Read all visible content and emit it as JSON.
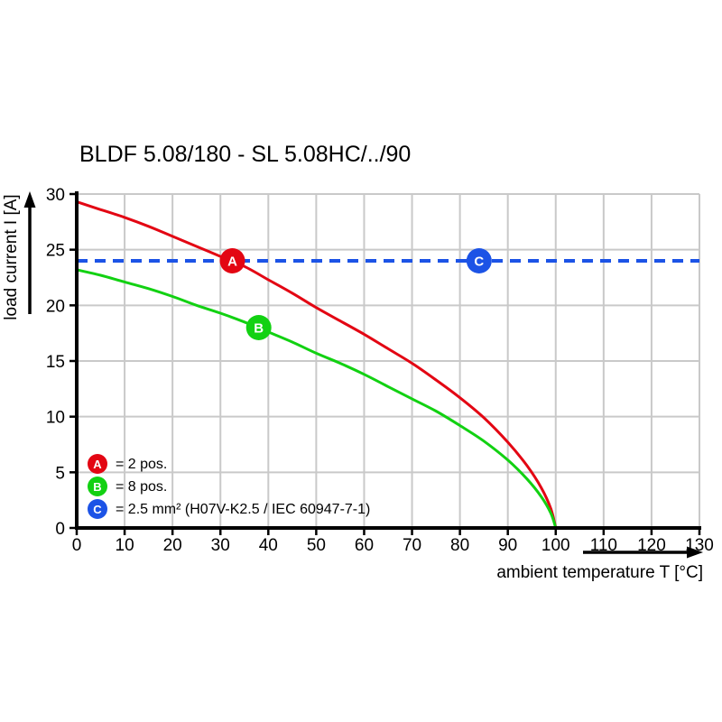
{
  "chart_data": {
    "type": "line",
    "title": "BLDF 5.08/180 - SL 5.08HC/../90",
    "xlabel": "ambient temperature T [°C]",
    "ylabel": "load current I [A]",
    "xlim": [
      0,
      130
    ],
    "ylim": [
      0,
      30
    ],
    "x_ticks": [
      0,
      10,
      20,
      30,
      40,
      50,
      60,
      70,
      80,
      90,
      100,
      110,
      120,
      130
    ],
    "y_ticks": [
      0,
      5,
      10,
      15,
      20,
      25,
      30
    ],
    "grid": true,
    "legend_position": "bottom-left-inside",
    "series": [
      {
        "id": "A",
        "label": "2 pos.",
        "color": "#e30613",
        "style": "solid",
        "points": [
          [
            0,
            29.3
          ],
          [
            5,
            28.6
          ],
          [
            10,
            27.9
          ],
          [
            15,
            27.1
          ],
          [
            20,
            26.2
          ],
          [
            25,
            25.3
          ],
          [
            30,
            24.4
          ],
          [
            35,
            23.5
          ],
          [
            40,
            22.3
          ],
          [
            45,
            21.1
          ],
          [
            50,
            19.8
          ],
          [
            55,
            18.6
          ],
          [
            60,
            17.4
          ],
          [
            65,
            16.1
          ],
          [
            70,
            14.8
          ],
          [
            75,
            13.3
          ],
          [
            80,
            11.7
          ],
          [
            85,
            9.9
          ],
          [
            90,
            7.7
          ],
          [
            94,
            5.6
          ],
          [
            97,
            3.6
          ],
          [
            99,
            1.7
          ],
          [
            100,
            0
          ]
        ]
      },
      {
        "id": "B",
        "label": "8 pos.",
        "color": "#12d112",
        "style": "solid",
        "points": [
          [
            0,
            23.2
          ],
          [
            5,
            22.7
          ],
          [
            10,
            22.1
          ],
          [
            15,
            21.5
          ],
          [
            20,
            20.8
          ],
          [
            25,
            20.0
          ],
          [
            30,
            19.3
          ],
          [
            35,
            18.5
          ],
          [
            40,
            17.6
          ],
          [
            45,
            16.7
          ],
          [
            50,
            15.7
          ],
          [
            55,
            14.8
          ],
          [
            60,
            13.8
          ],
          [
            65,
            12.7
          ],
          [
            70,
            11.6
          ],
          [
            75,
            10.5
          ],
          [
            80,
            9.2
          ],
          [
            85,
            7.8
          ],
          [
            90,
            6.1
          ],
          [
            94,
            4.4
          ],
          [
            97,
            2.8
          ],
          [
            99,
            1.3
          ],
          [
            100,
            0
          ]
        ]
      },
      {
        "id": "C",
        "label": "2.5 mm² (H07V-K2.5 / IEC 60947-7-1)",
        "color": "#1c53e6",
        "style": "dashed",
        "points": [
          [
            0,
            24
          ],
          [
            130,
            24
          ]
        ]
      }
    ],
    "markers": [
      {
        "letter": "A",
        "x": 32.5,
        "y": 24,
        "color": "#e30613"
      },
      {
        "letter": "B",
        "x": 38,
        "y": 18,
        "color": "#12d112"
      },
      {
        "letter": "C",
        "x": 84,
        "y": 24,
        "color": "#1c53e6"
      }
    ],
    "legend": [
      {
        "letter": "A",
        "color": "#e30613",
        "text": "= 2 pos."
      },
      {
        "letter": "B",
        "color": "#12d112",
        "text": "= 8 pos."
      },
      {
        "letter": "C",
        "color": "#1c53e6",
        "text": "= 2.5 mm² (H07V-K2.5 / IEC 60947-7-1)"
      }
    ]
  },
  "colors": {
    "red": "#e30613",
    "green": "#12d112",
    "blue": "#1c53e6",
    "grid": "#c9c9c9",
    "axis": "#000000",
    "text": "#000000",
    "background": "#ffffff"
  }
}
